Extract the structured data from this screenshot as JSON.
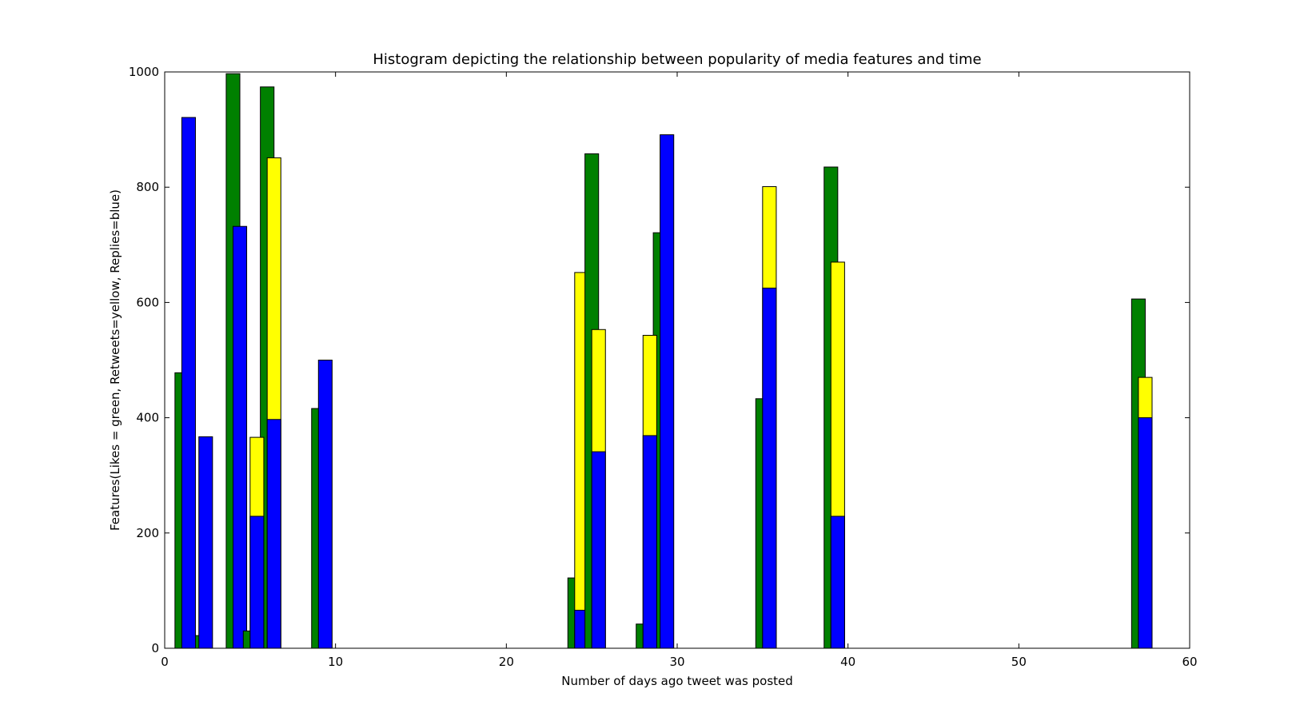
{
  "chart_data": {
    "type": "bar",
    "title": "Histogram depicting the relationship between popularity of media features and time",
    "xlabel": "Number of days ago tweet was posted",
    "ylabel": "Features(Likes = green, Retweets=yellow, Replies=blue)",
    "xlim": [
      0,
      60
    ],
    "ylim": [
      0,
      1000
    ],
    "xticks": [
      0,
      10,
      20,
      30,
      40,
      50,
      60
    ],
    "yticks": [
      0,
      200,
      400,
      600,
      800,
      1000
    ],
    "bar_width": 0.8,
    "grid": false,
    "colors": {
      "Likes": "#008000",
      "Retweets": "#ffff00",
      "Replies": "#0000ff"
    },
    "bars": [
      {
        "series": "Likes",
        "x": 0.6,
        "value": 478
      },
      {
        "series": "Likes",
        "x": 1.6,
        "value": 22
      },
      {
        "series": "Replies",
        "x": 1.0,
        "value": 921
      },
      {
        "series": "Replies",
        "x": 2.0,
        "value": 367
      },
      {
        "series": "Likes",
        "x": 3.6,
        "value": 997
      },
      {
        "series": "Replies",
        "x": 4.0,
        "value": 732
      },
      {
        "series": "Likes",
        "x": 4.6,
        "value": 30
      },
      {
        "series": "Likes",
        "x": 5.6,
        "value": 974
      },
      {
        "series": "Retweets",
        "x": 5.0,
        "value": 366
      },
      {
        "series": "Replies",
        "x": 5.0,
        "value": 229
      },
      {
        "series": "Retweets",
        "x": 6.0,
        "value": 851
      },
      {
        "series": "Replies",
        "x": 6.0,
        "value": 397
      },
      {
        "series": "Likes",
        "x": 8.6,
        "value": 416
      },
      {
        "series": "Replies",
        "x": 9.0,
        "value": 500
      },
      {
        "series": "Likes",
        "x": 23.6,
        "value": 122
      },
      {
        "series": "Retweets",
        "x": 24.0,
        "value": 652
      },
      {
        "series": "Replies",
        "x": 24.0,
        "value": 66
      },
      {
        "series": "Likes",
        "x": 24.6,
        "value": 858
      },
      {
        "series": "Retweets",
        "x": 25.0,
        "value": 553
      },
      {
        "series": "Replies",
        "x": 25.0,
        "value": 341
      },
      {
        "series": "Likes",
        "x": 27.6,
        "value": 42
      },
      {
        "series": "Likes",
        "x": 28.6,
        "value": 721
      },
      {
        "series": "Retweets",
        "x": 28.0,
        "value": 543
      },
      {
        "series": "Replies",
        "x": 28.0,
        "value": 369
      },
      {
        "series": "Replies",
        "x": 29.0,
        "value": 891
      },
      {
        "series": "Likes",
        "x": 34.6,
        "value": 433
      },
      {
        "series": "Retweets",
        "x": 35.0,
        "value": 801
      },
      {
        "series": "Replies",
        "x": 35.0,
        "value": 625
      },
      {
        "series": "Likes",
        "x": 38.6,
        "value": 835
      },
      {
        "series": "Retweets",
        "x": 39.0,
        "value": 670
      },
      {
        "series": "Replies",
        "x": 39.0,
        "value": 229
      },
      {
        "series": "Likes",
        "x": 56.6,
        "value": 606
      },
      {
        "series": "Retweets",
        "x": 57.0,
        "value": 470
      },
      {
        "series": "Replies",
        "x": 57.0,
        "value": 400
      }
    ]
  }
}
